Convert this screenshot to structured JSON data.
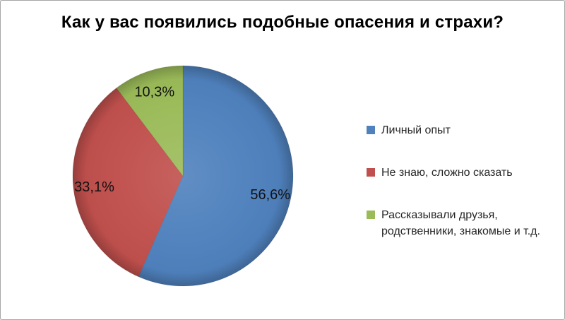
{
  "frame": {
    "background": "#ffffff",
    "border_color": "#a6a6a6"
  },
  "chart_data": {
    "type": "pie",
    "title": "Как у вас появились подобные опасения и страхи?",
    "legend_position": "right",
    "start_angle_deg": 0,
    "direction": "clockwise",
    "label_radius_ratio": 0.81,
    "label_color": "#111111",
    "legend_text_color": "#262626",
    "slices": [
      {
        "label": "Личный опыт",
        "value": 56.6,
        "display_value": "56,6%",
        "color": "#4F81BD"
      },
      {
        "label": "Не знаю, сложно сказать",
        "value": 33.1,
        "display_value": "33,1%",
        "color": "#C0504D"
      },
      {
        "label": "Рассказывали друзья, родственники, знакомые и т.д.",
        "value": 10.3,
        "display_value": "10,3%",
        "color": "#9BBB59"
      }
    ]
  }
}
